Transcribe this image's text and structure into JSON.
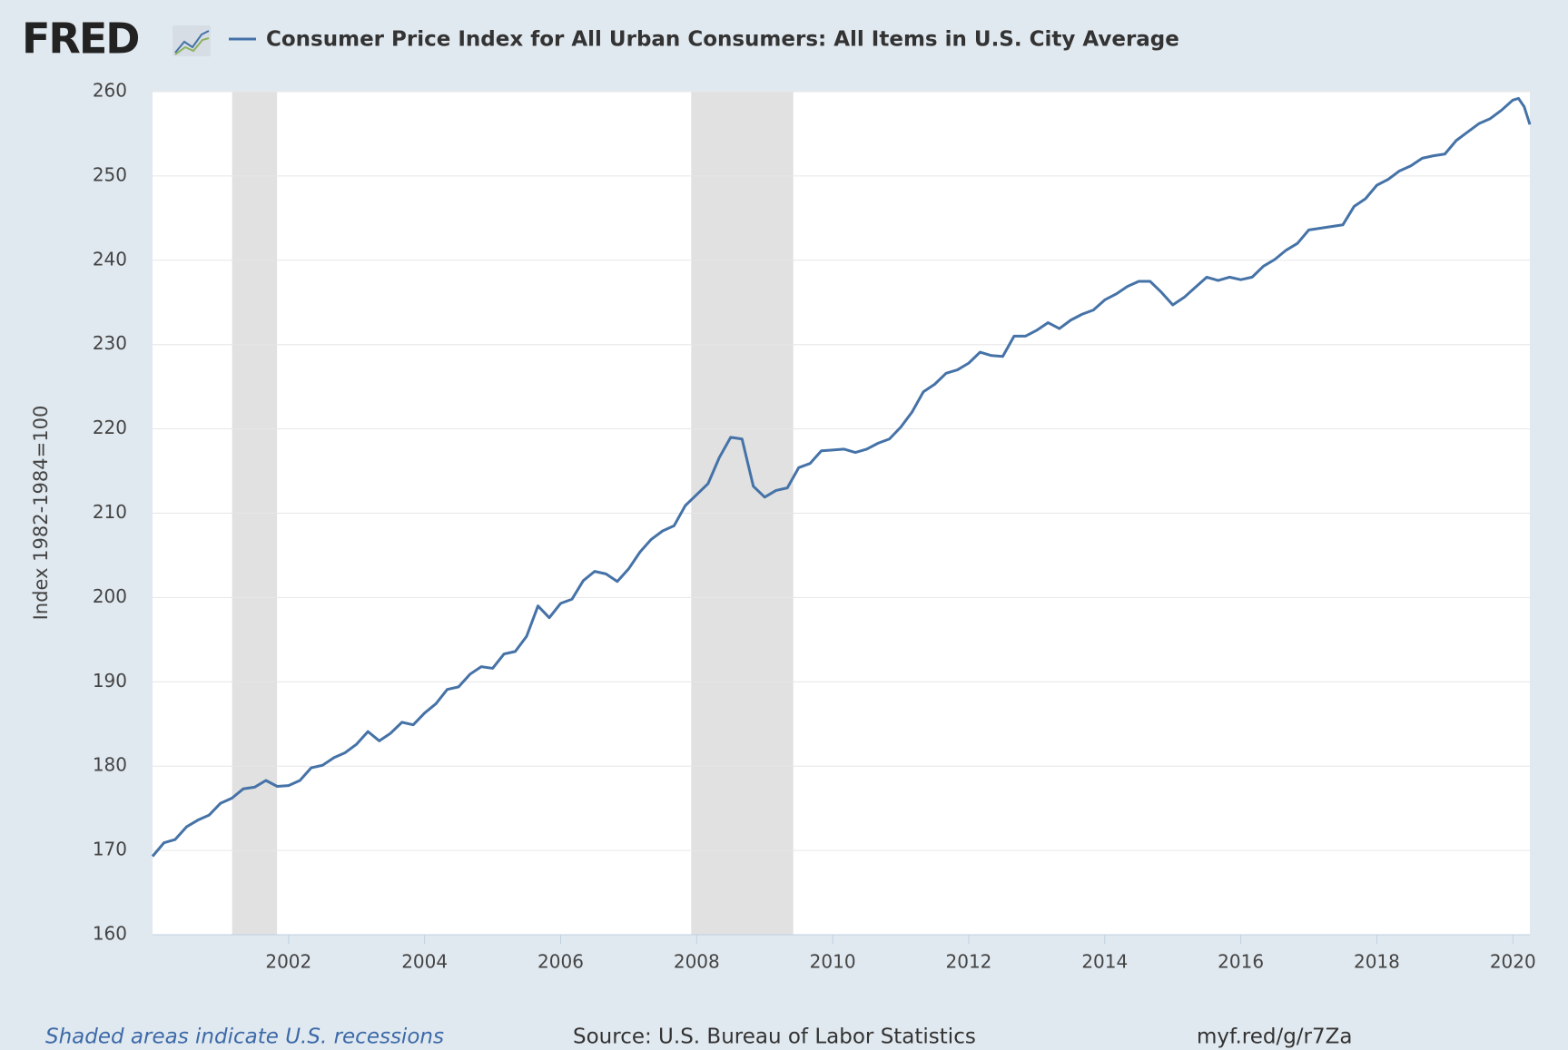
{
  "chart_data": {
    "type": "line",
    "logo": "FRED",
    "ylabel": "Index 1982-1984=100",
    "note": "Shaded areas indicate U.S. recessions",
    "source": "Source: U.S. Bureau of Labor Statistics",
    "link": "myf.red/g/r7Za",
    "xlim": [
      2000,
      2020.25
    ],
    "xticks": [
      2002,
      2004,
      2006,
      2008,
      2010,
      2012,
      2014,
      2016,
      2018,
      2020
    ],
    "ylim": [
      160,
      260
    ],
    "yticks": [
      160,
      170,
      180,
      190,
      200,
      210,
      220,
      230,
      240,
      250,
      260
    ],
    "grid": true,
    "recessions": [
      [
        2001.17,
        2001.83
      ],
      [
        2007.92,
        2009.42
      ]
    ],
    "recession_color": "#e1e1e1",
    "x": [
      2000,
      2000.167,
      2000.333,
      2000.5,
      2000.667,
      2000.833,
      2001,
      2001.167,
      2001.333,
      2001.5,
      2001.667,
      2001.833,
      2002,
      2002.167,
      2002.333,
      2002.5,
      2002.667,
      2002.833,
      2003,
      2003.167,
      2003.333,
      2003.5,
      2003.667,
      2003.833,
      2004,
      2004.167,
      2004.333,
      2004.5,
      2004.667,
      2004.833,
      2005,
      2005.167,
      2005.333,
      2005.5,
      2005.667,
      2005.833,
      2006,
      2006.167,
      2006.333,
      2006.5,
      2006.667,
      2006.833,
      2007,
      2007.167,
      2007.333,
      2007.5,
      2007.667,
      2007.833,
      2008,
      2008.167,
      2008.333,
      2008.5,
      2008.667,
      2008.833,
      2009,
      2009.167,
      2009.333,
      2009.5,
      2009.667,
      2009.833,
      2010,
      2010.167,
      2010.333,
      2010.5,
      2010.667,
      2010.833,
      2011,
      2011.167,
      2011.333,
      2011.5,
      2011.667,
      2011.833,
      2012,
      2012.167,
      2012.333,
      2012.5,
      2012.667,
      2012.833,
      2013,
      2013.167,
      2013.333,
      2013.5,
      2013.667,
      2013.833,
      2014,
      2014.167,
      2014.333,
      2014.5,
      2014.667,
      2014.833,
      2015,
      2015.167,
      2015.333,
      2015.5,
      2015.667,
      2015.833,
      2016,
      2016.167,
      2016.333,
      2016.5,
      2016.667,
      2016.833,
      2017,
      2017.167,
      2017.333,
      2017.5,
      2017.667,
      2017.833,
      2018,
      2018.167,
      2018.333,
      2018.5,
      2018.667,
      2018.833,
      2019,
      2019.167,
      2019.333,
      2019.5,
      2019.667,
      2019.833,
      2020,
      2020.083,
      2020.167,
      2020.25
    ],
    "series": [
      {
        "name": "Consumer Price Index for All Urban Consumers: All Items in U.S. City Average",
        "color": "#4572a7",
        "values": [
          169.3,
          170.9,
          171.3,
          172.8,
          173.6,
          174.2,
          175.6,
          176.2,
          177.3,
          177.5,
          178.3,
          177.6,
          177.7,
          178.3,
          179.8,
          180.1,
          181.0,
          181.6,
          182.6,
          184.1,
          183.0,
          183.9,
          185.2,
          184.9,
          186.3,
          187.4,
          189.1,
          189.4,
          190.9,
          191.8,
          191.6,
          193.3,
          193.6,
          195.4,
          199.0,
          197.6,
          199.3,
          199.8,
          202.0,
          203.1,
          202.8,
          201.9,
          203.4,
          205.4,
          206.9,
          207.9,
          208.5,
          210.9,
          212.2,
          213.5,
          216.6,
          219.0,
          218.8,
          213.2,
          211.9,
          212.7,
          213.0,
          215.4,
          215.9,
          217.4,
          217.5,
          217.6,
          217.2,
          217.6,
          218.3,
          218.8,
          220.2,
          222.0,
          224.4,
          225.3,
          226.6,
          227.0,
          227.8,
          229.1,
          228.7,
          228.6,
          231.0,
          231.0,
          231.7,
          232.6,
          231.9,
          232.9,
          233.6,
          234.1,
          235.3,
          236.0,
          236.9,
          237.5,
          237.5,
          236.2,
          234.7,
          235.6,
          236.8,
          238.0,
          237.6,
          238.0,
          237.7,
          238.0,
          239.3,
          240.1,
          241.2,
          242.0,
          243.6,
          243.8,
          244.0,
          244.2,
          246.4,
          247.3,
          248.9,
          249.6,
          250.6,
          251.2,
          252.1,
          252.4,
          252.6,
          254.2,
          255.2,
          256.2,
          256.8,
          257.8,
          259.0,
          259.2,
          258.2,
          256.1
        ]
      }
    ]
  }
}
